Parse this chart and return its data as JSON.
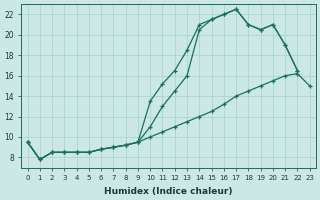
{
  "xlabel": "Humidex (Indice chaleur)",
  "xlim": [
    -0.5,
    23.5
  ],
  "ylim": [
    7,
    23
  ],
  "xticks": [
    0,
    1,
    2,
    3,
    4,
    5,
    6,
    7,
    8,
    9,
    10,
    11,
    12,
    13,
    14,
    15,
    16,
    17,
    18,
    19,
    20,
    21,
    22,
    23
  ],
  "yticks": [
    8,
    10,
    12,
    14,
    16,
    18,
    20,
    22
  ],
  "background_color": "#cce8e5",
  "grid_color": "#aad4d0",
  "line_color1": "#1a6e62",
  "line_color2": "#1a6e62",
  "line_color3": "#1a6e62",
  "series": [
    {
      "x": [
        0,
        1,
        2,
        3,
        4,
        5,
        6,
        7,
        8,
        9,
        10,
        11,
        12,
        13,
        14,
        15,
        16,
        17,
        18,
        19,
        20,
        21,
        22
      ],
      "y": [
        9.5,
        7.8,
        8.5,
        8.5,
        8.5,
        8.5,
        8.8,
        9.0,
        9.2,
        9.5,
        13.5,
        15.2,
        16.5,
        18.5,
        21.0,
        21.5,
        22.0,
        22.5,
        21.0,
        20.5,
        21.0,
        19.0,
        16.5
      ]
    },
    {
      "x": [
        0,
        1,
        2,
        3,
        4,
        5,
        6,
        7,
        8,
        9,
        10,
        11,
        12,
        13,
        14,
        15,
        16,
        17,
        18,
        19,
        20,
        21,
        22
      ],
      "y": [
        9.5,
        7.8,
        8.5,
        8.5,
        8.5,
        8.5,
        8.8,
        9.0,
        9.2,
        9.5,
        11.0,
        13.0,
        14.5,
        16.0,
        20.5,
        21.5,
        22.0,
        22.5,
        21.0,
        20.5,
        21.0,
        19.0,
        16.5
      ]
    },
    {
      "x": [
        0,
        1,
        2,
        3,
        4,
        5,
        6,
        7,
        8,
        9,
        10,
        11,
        12,
        13,
        14,
        15,
        16,
        17,
        18,
        19,
        20,
        21,
        22,
        23
      ],
      "y": [
        9.5,
        7.8,
        8.5,
        8.5,
        8.5,
        8.5,
        8.8,
        9.0,
        9.2,
        9.5,
        10.0,
        10.5,
        11.0,
        11.5,
        12.0,
        12.5,
        13.2,
        14.0,
        14.5,
        15.0,
        15.5,
        16.0,
        16.2,
        15.0
      ]
    }
  ]
}
